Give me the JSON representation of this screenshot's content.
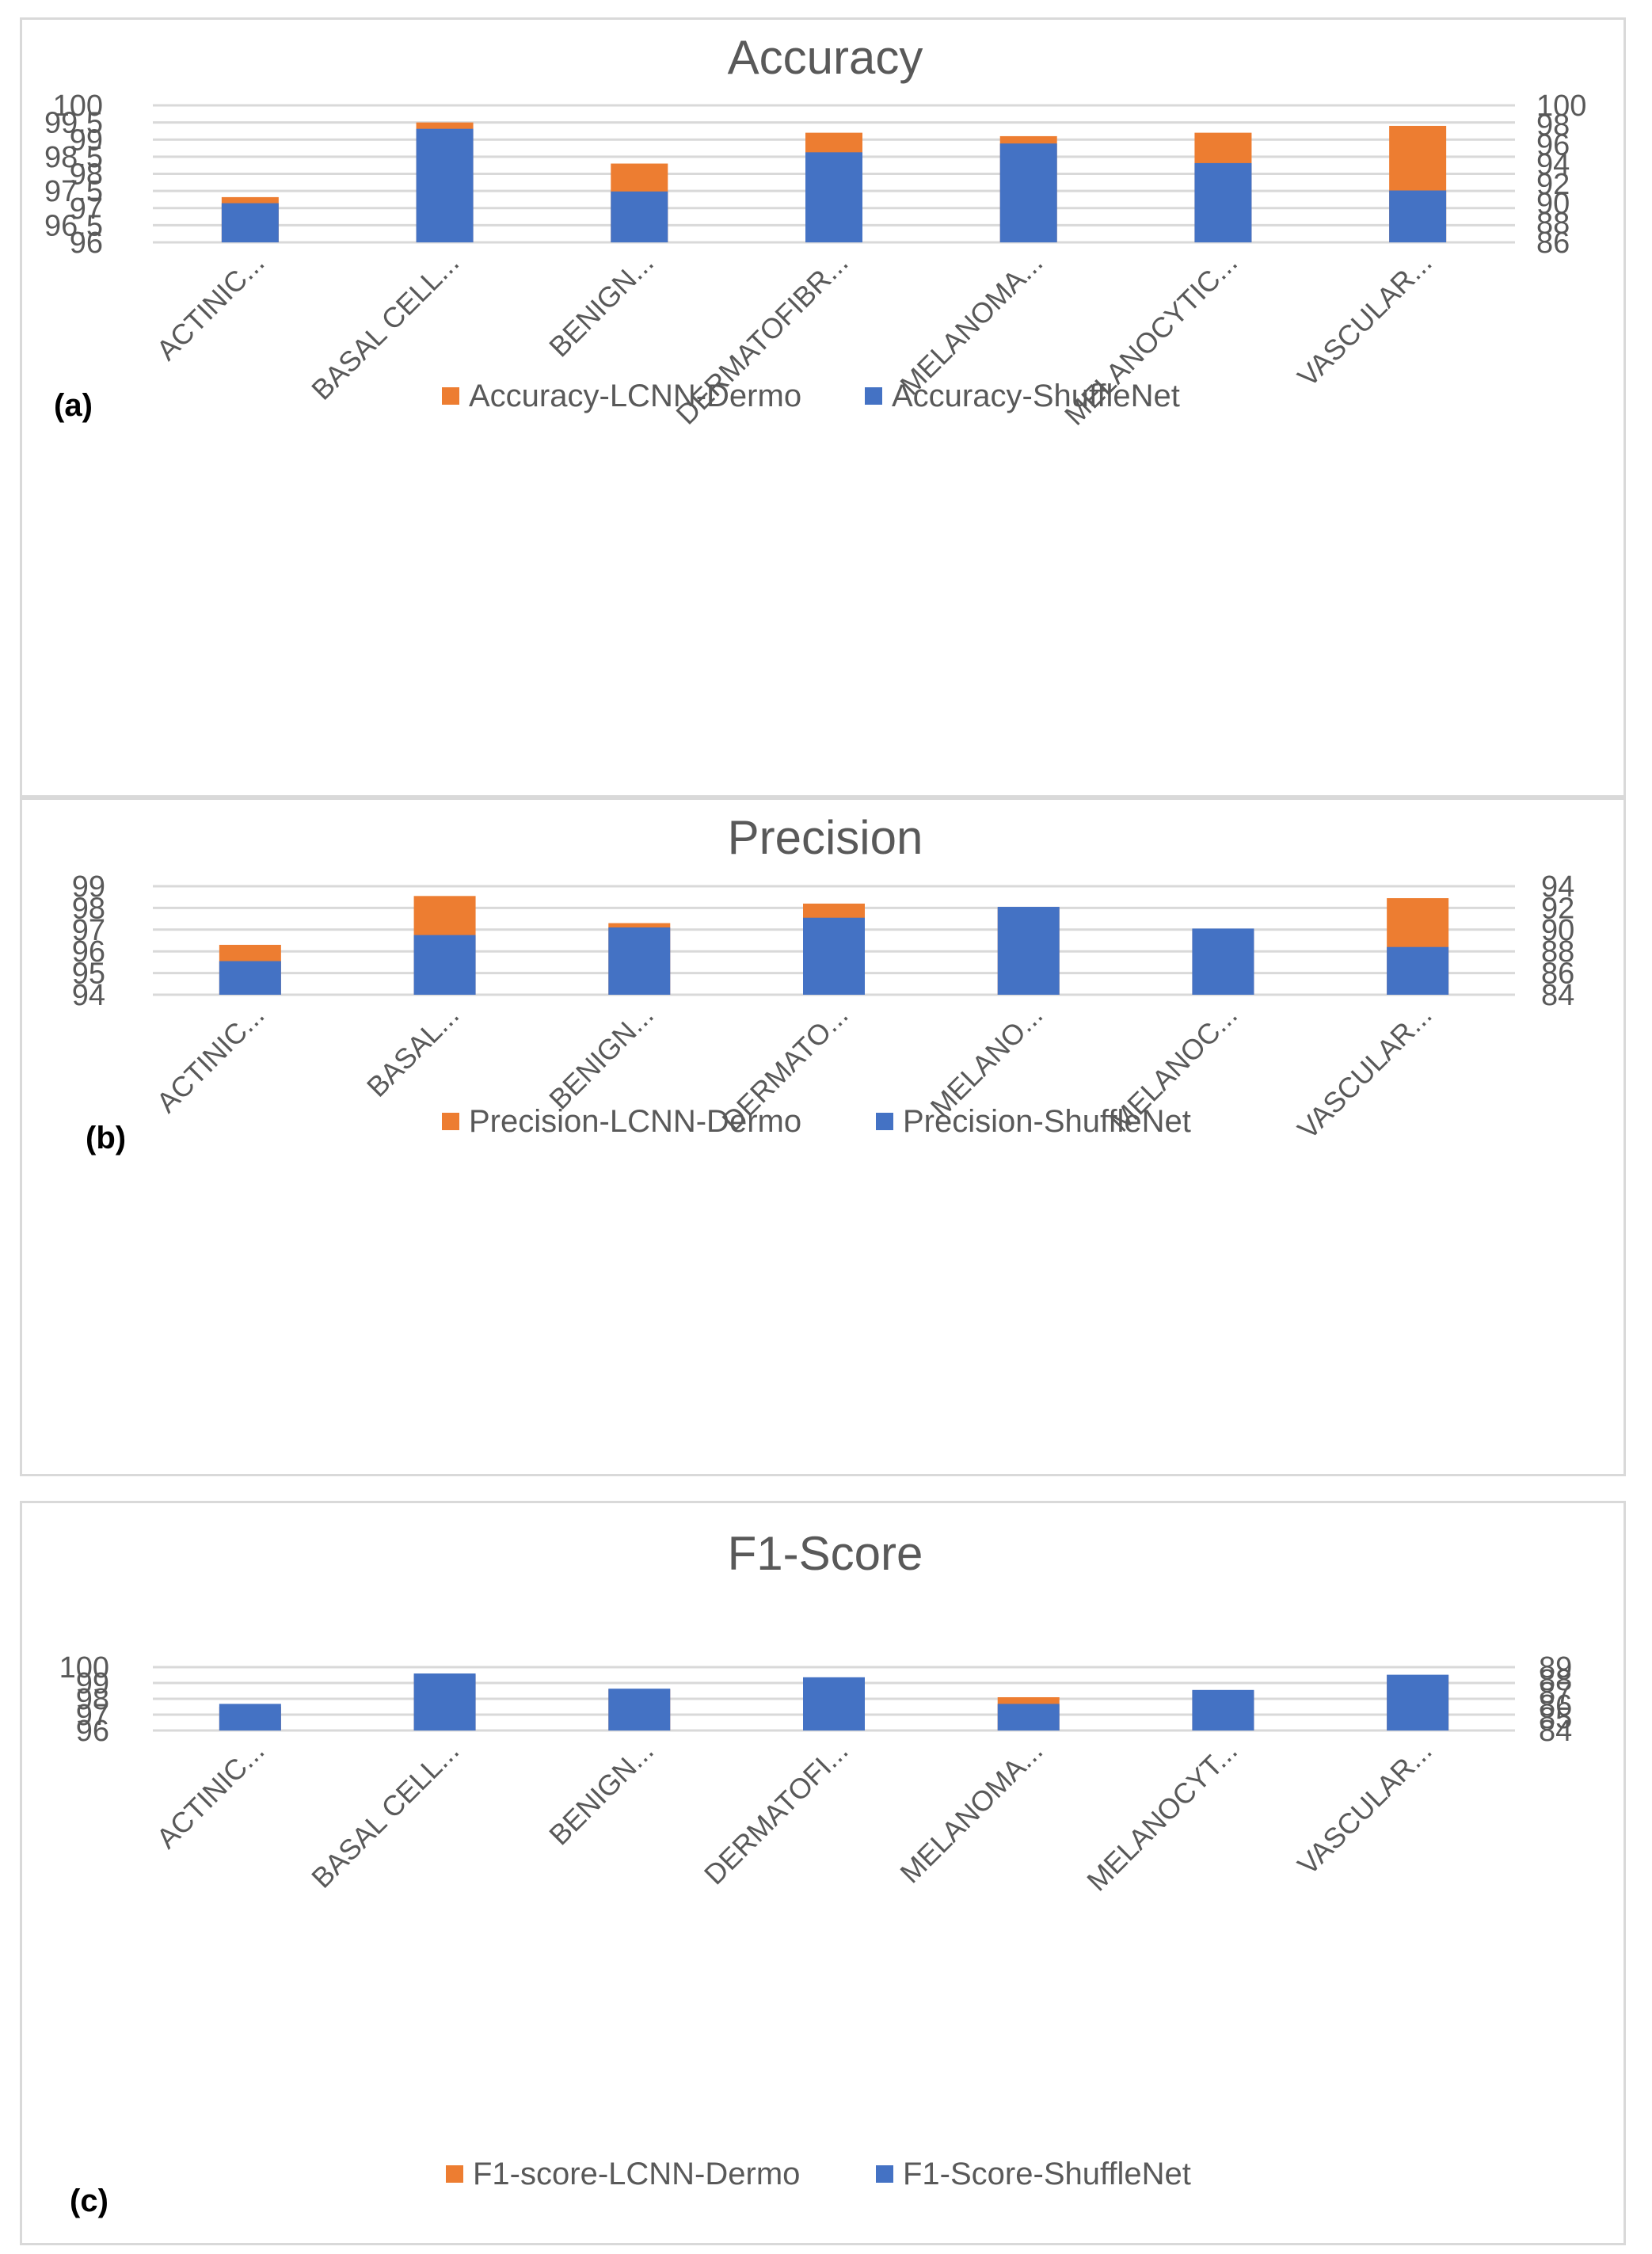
{
  "colors": {
    "lcnn": "#ED7D31",
    "shufflenet": "#4472C4",
    "text": "#595959",
    "grid": "#D9D9D9"
  },
  "chart_data": [
    {
      "type": "bar",
      "stacked": true,
      "title": "Accuracy",
      "panel_label": "(a)",
      "categories": [
        "ACTINIC...",
        "BASAL CELL...",
        "BENIGN...",
        "DERMATOFIBR...",
        "MELANOMA...",
        "MELANOCYTIC...",
        "VASCULAR..."
      ],
      "series": [
        {
          "name": "Accuracy-ShuffleNet",
          "axis": "secondary",
          "values": [
            90.0,
            97.6,
            91.2,
            95.2,
            96.1,
            94.1,
            91.3
          ]
        },
        {
          "name": "Accuracy-LCNN-Dermo",
          "axis": "primary",
          "values": [
            97.32,
            99.5,
            98.3,
            99.2,
            99.1,
            99.2,
            99.4
          ]
        }
      ],
      "y_primary": {
        "min": 96,
        "max": 100,
        "ticks": [
          "100",
          "99.5",
          "99",
          "98.5",
          "98",
          "97.5",
          "97",
          "96.5",
          "96"
        ]
      },
      "y_secondary": {
        "min": 86,
        "max": 100,
        "ticks": [
          "100",
          "98",
          "96",
          "94",
          "92",
          "90",
          "88",
          "86"
        ]
      },
      "legend": [
        "Accuracy-LCNN-Dermo",
        "Accuracy-ShuffleNet"
      ],
      "legend_position": "bottom"
    },
    {
      "type": "bar",
      "stacked": true,
      "title": "Precision",
      "panel_label": "(b)",
      "categories": [
        "ACTINIC...",
        "BASAL...",
        "BENIGN...",
        "DERMATO...",
        "MELANO...",
        "MELANOC...",
        "VASCULAR..."
      ],
      "series": [
        {
          "name": "Precision-ShuffleNet",
          "axis": "secondary",
          "values": [
            87.1,
            89.5,
            90.2,
            91.1,
            92.1,
            90.1,
            88.4
          ]
        },
        {
          "name": "Precision-LCNN-Dermo",
          "axis": "primary",
          "values": [
            96.3,
            98.55,
            97.3,
            98.2,
            98.0,
            97.0,
            98.45
          ]
        }
      ],
      "y_primary": {
        "min": 94,
        "max": 99,
        "ticks": [
          "99",
          "98",
          "97",
          "96",
          "95",
          "94"
        ]
      },
      "y_secondary": {
        "min": 84,
        "max": 94,
        "ticks": [
          "94",
          "92",
          "90",
          "88",
          "86",
          "84"
        ]
      },
      "legend": [
        "Precision-LCNN-Dermo",
        "Precision-ShuffleNet"
      ],
      "legend_position": "bottom"
    },
    {
      "type": "bar",
      "stacked": true,
      "title": "F1-Score",
      "panel_label": "(c)",
      "categories": [
        "ACTINIC...",
        "BASAL CELL...",
        "BENIGN...",
        "DERMATOFI...",
        "MELANOMA...",
        "MELANOCYT...",
        "VASCULAR..."
      ],
      "series": [
        {
          "name": "F1-Score-ShuffleNet",
          "axis": "secondary",
          "values": [
            86.1,
            88.5,
            87.3,
            88.2,
            86.1,
            87.2,
            88.4
          ]
        },
        {
          "name": "F1-score-LCNN-Dermo",
          "axis": "primary",
          "values": [
            97.5,
            99.5,
            98.6,
            99.3,
            98.1,
            98.5,
            99.5
          ]
        }
      ],
      "y_primary": {
        "min": 96,
        "max": 100,
        "ticks": [
          "100",
          "99",
          "98",
          "97",
          "96"
        ]
      },
      "y_secondary": {
        "min": 84,
        "max": 89,
        "ticks": [
          "89",
          "88",
          "87",
          "86",
          "85",
          "84"
        ]
      },
      "legend": [
        "F1-score-LCNN-Dermo",
        "F1-Score-ShuffleNet"
      ],
      "legend_position": "bottom"
    }
  ]
}
